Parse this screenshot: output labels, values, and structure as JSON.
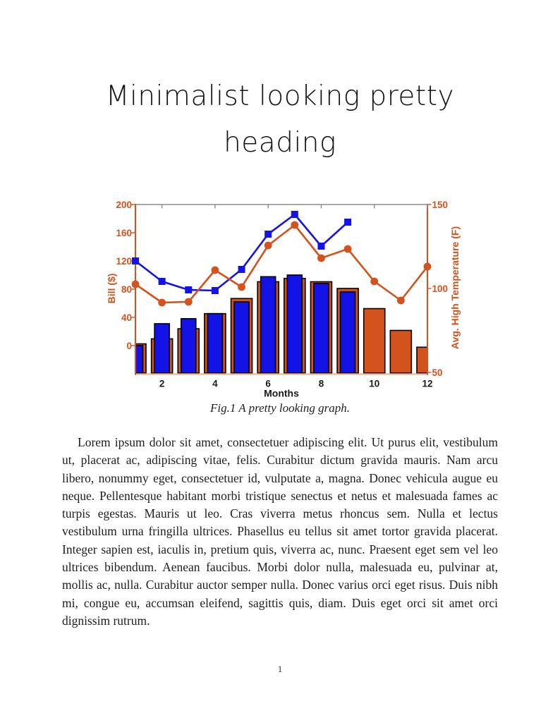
{
  "page": {
    "heading_line1": "Minimalist looking pretty",
    "heading_line2": "heading",
    "page_number": "1"
  },
  "figure": {
    "caption": "Fig.1 A pretty looking graph."
  },
  "body": {
    "paragraph": "Lorem ipsum dolor sit amet, consectetuer adipiscing elit. Ut purus elit, vestibulum ut, placerat ac, adipiscing vitae, felis. Curabitur dictum gravida mauris. Nam arcu libero, nonummy eget, consectetuer id, vulputate a, magna. Donec vehicula augue eu neque. Pellentesque habitant morbi tristique senectus et netus et malesuada fames ac turpis egestas. Mauris ut leo. Cras viverra metus rhoncus sem. Nulla et lectus vestibulum urna fringilla ultrices. Phasellus eu tellus sit amet tortor gravida placerat. Integer sapien est, iaculis in, pretium quis, viverra ac, nunc. Praesent eget sem vel leo ultrices bibendum. Aenean faucibus. Morbi dolor nulla, malesuada eu, pulvinar at, mollis ac, nulla. Curabitur auctor semper nulla. Donec varius orci eget risus. Duis nibh mi, congue eu, accumsan eleifend, sagittis quis, diam. Duis eget orci sit amet orci dignissim rutrum."
  },
  "chart_data": {
    "type": "bar",
    "subtype": "dual-axis-bar-and-line-combo",
    "x": [
      1,
      2,
      3,
      4,
      5,
      6,
      7,
      8,
      9,
      10,
      11,
      12
    ],
    "xlabel": "Months",
    "x_ticks": [
      2,
      4,
      6,
      8,
      10,
      12
    ],
    "left_axis": {
      "label": "Bill ($)",
      "ticks": [
        0,
        40,
        80,
        120,
        160,
        200
      ],
      "min": 0,
      "max": 200
    },
    "right_axis": {
      "label": "Avg. High Temperature (F)",
      "ticks": [
        50,
        100,
        150
      ],
      "min": 50,
      "max": 150
    },
    "legend": "none",
    "grid": "off",
    "series": [
      {
        "name": "orange-bars-avg-high-temperature",
        "type": "bar",
        "axis": "right",
        "color": "#d4521b",
        "values": [
          67,
          70,
          76,
          85,
          94,
          104,
          106,
          104,
          100,
          88,
          75,
          65
        ]
      },
      {
        "name": "blue-bars-avg-high-temperature",
        "type": "bar",
        "axis": "right",
        "color": "#1313e8",
        "values": [
          66,
          79,
          82,
          85,
          92,
          107,
          108,
          103,
          98
        ]
      },
      {
        "name": "blue-line-bill",
        "type": "line",
        "marker": "square",
        "axis": "left",
        "color": "#1313e8",
        "values": [
          120,
          91,
          79,
          78,
          108,
          158,
          186,
          141,
          175
        ]
      },
      {
        "name": "orange-line-bill",
        "type": "line",
        "marker": "circle",
        "axis": "left",
        "color": "#d4521b",
        "values": [
          87,
          61,
          62,
          107,
          83,
          142,
          171,
          124,
          137,
          91,
          64,
          112
        ]
      }
    ],
    "colors": {
      "orange": "#d4521b",
      "blue": "#1313e8",
      "top_spine": "#8c8c8c",
      "bottom_spine": "#f2b58f",
      "bar_outline": "#000000",
      "x_tick_text": "#1a1a1a"
    }
  }
}
